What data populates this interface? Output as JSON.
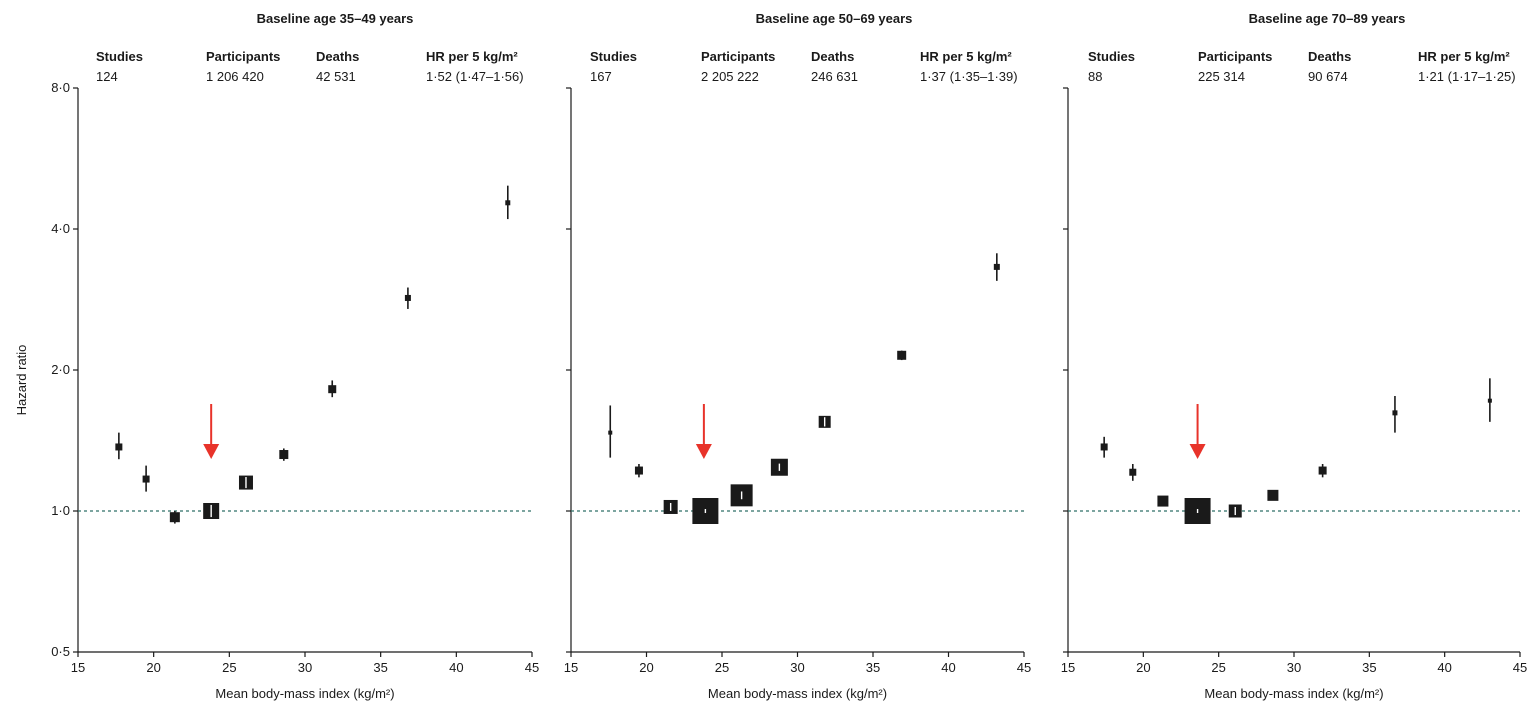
{
  "chart_data": [
    {
      "type": "scatter",
      "title": "Baseline age 35–49 years",
      "xlabel": "Mean body-mass index (kg/m²)",
      "ylabel": "Hazard ratio",
      "xlim": [
        15,
        45
      ],
      "ylim": [
        0.5,
        8.0
      ],
      "y_scale": "log2",
      "x_ticks": [
        "15",
        "20",
        "25",
        "30",
        "35",
        "40",
        "45"
      ],
      "y_ticks": [
        "0·5",
        "1·0",
        "2·0",
        "4·0",
        "8·0"
      ],
      "reference_line_y": 1.0,
      "arrow_at_x": 23.8,
      "arrow_color": "#e8332a",
      "stats": {
        "headers": [
          "Studies",
          "Participants",
          "Deaths",
          "HR per 5 kg/m²"
        ],
        "values": [
          "124",
          "1 206 420",
          "42 531",
          "1·52 (1·47–1·56)"
        ]
      },
      "points": [
        {
          "x": 17.7,
          "hr": 1.37,
          "lo": 1.29,
          "hi": 1.47,
          "size": 7
        },
        {
          "x": 19.5,
          "hr": 1.17,
          "lo": 1.1,
          "hi": 1.25,
          "size": 7
        },
        {
          "x": 21.4,
          "hr": 0.97,
          "lo": 0.94,
          "hi": 1.0,
          "size": 10
        },
        {
          "x": 23.8,
          "hr": 1.0,
          "lo": 0.98,
          "hi": 1.02,
          "size": 16
        },
        {
          "x": 26.1,
          "hr": 1.15,
          "lo": 1.13,
          "hi": 1.17,
          "size": 14
        },
        {
          "x": 28.6,
          "hr": 1.32,
          "lo": 1.28,
          "hi": 1.36,
          "size": 9
        },
        {
          "x": 31.8,
          "hr": 1.82,
          "lo": 1.75,
          "hi": 1.9,
          "size": 8
        },
        {
          "x": 36.8,
          "hr": 2.85,
          "lo": 2.7,
          "hi": 3.0,
          "size": 6
        },
        {
          "x": 43.4,
          "hr": 4.55,
          "lo": 4.2,
          "hi": 4.95,
          "size": 5
        }
      ]
    },
    {
      "type": "scatter",
      "title": "Baseline age 50–69 years",
      "xlabel": "Mean body-mass index (kg/m²)",
      "ylabel": "",
      "xlim": [
        15,
        45
      ],
      "ylim": [
        0.5,
        8.0
      ],
      "y_scale": "log2",
      "x_ticks": [
        "15",
        "20",
        "25",
        "30",
        "35",
        "40",
        "45"
      ],
      "y_ticks": [],
      "reference_line_y": 1.0,
      "arrow_at_x": 23.8,
      "arrow_color": "#e8332a",
      "stats": {
        "headers": [
          "Studies",
          "Participants",
          "Deaths",
          "HR per 5 kg/m²"
        ],
        "values": [
          "167",
          "2 205 222",
          "246 631",
          "1·37 (1·35–1·39)"
        ]
      },
      "points": [
        {
          "x": 17.6,
          "hr": 1.47,
          "lo": 1.3,
          "hi": 1.68,
          "size": 4
        },
        {
          "x": 19.5,
          "hr": 1.22,
          "lo": 1.18,
          "hi": 1.26,
          "size": 8
        },
        {
          "x": 21.6,
          "hr": 1.02,
          "lo": 1.01,
          "hi": 1.03,
          "size": 14
        },
        {
          "x": 23.9,
          "hr": 1.0,
          "lo": 1.0,
          "hi": 1.0,
          "size": 26
        },
        {
          "x": 26.3,
          "hr": 1.08,
          "lo": 1.07,
          "hi": 1.09,
          "size": 22
        },
        {
          "x": 28.8,
          "hr": 1.24,
          "lo": 1.23,
          "hi": 1.25,
          "size": 17
        },
        {
          "x": 31.8,
          "hr": 1.55,
          "lo": 1.53,
          "hi": 1.57,
          "size": 12
        },
        {
          "x": 36.9,
          "hr": 2.15,
          "lo": 2.1,
          "hi": 2.2,
          "size": 9
        },
        {
          "x": 43.2,
          "hr": 3.32,
          "lo": 3.1,
          "hi": 3.55,
          "size": 6
        }
      ]
    },
    {
      "type": "scatter",
      "title": "Baseline age 70–89 years",
      "xlabel": "Mean body-mass index (kg/m²)",
      "ylabel": "",
      "xlim": [
        15,
        45
      ],
      "ylim": [
        0.5,
        8.0
      ],
      "y_scale": "log2",
      "x_ticks": [
        "15",
        "20",
        "25",
        "30",
        "35",
        "40",
        "45"
      ],
      "y_ticks": [],
      "reference_line_y": 1.0,
      "arrow_at_x": 23.6,
      "arrow_color": "#e8332a",
      "stats": {
        "headers": [
          "Studies",
          "Participants",
          "Deaths",
          "HR per 5 kg/m²"
        ],
        "values": [
          "88",
          "225 314",
          "90 674",
          "1·21 (1·17–1·25)"
        ]
      },
      "points": [
        {
          "x": 17.4,
          "hr": 1.37,
          "lo": 1.3,
          "hi": 1.44,
          "size": 7
        },
        {
          "x": 19.3,
          "hr": 1.21,
          "lo": 1.16,
          "hi": 1.26,
          "size": 7
        },
        {
          "x": 21.3,
          "hr": 1.05,
          "lo": 1.04,
          "hi": 1.06,
          "size": 11
        },
        {
          "x": 23.6,
          "hr": 1.0,
          "lo": 1.0,
          "hi": 1.0,
          "size": 26
        },
        {
          "x": 26.1,
          "hr": 1.0,
          "lo": 0.99,
          "hi": 1.01,
          "size": 13
        },
        {
          "x": 28.6,
          "hr": 1.08,
          "lo": 1.07,
          "hi": 1.09,
          "size": 11
        },
        {
          "x": 31.9,
          "hr": 1.22,
          "lo": 1.18,
          "hi": 1.26,
          "size": 8
        },
        {
          "x": 36.7,
          "hr": 1.62,
          "lo": 1.47,
          "hi": 1.76,
          "size": 5
        },
        {
          "x": 43.0,
          "hr": 1.72,
          "lo": 1.55,
          "hi": 1.92,
          "size": 4
        }
      ]
    }
  ]
}
